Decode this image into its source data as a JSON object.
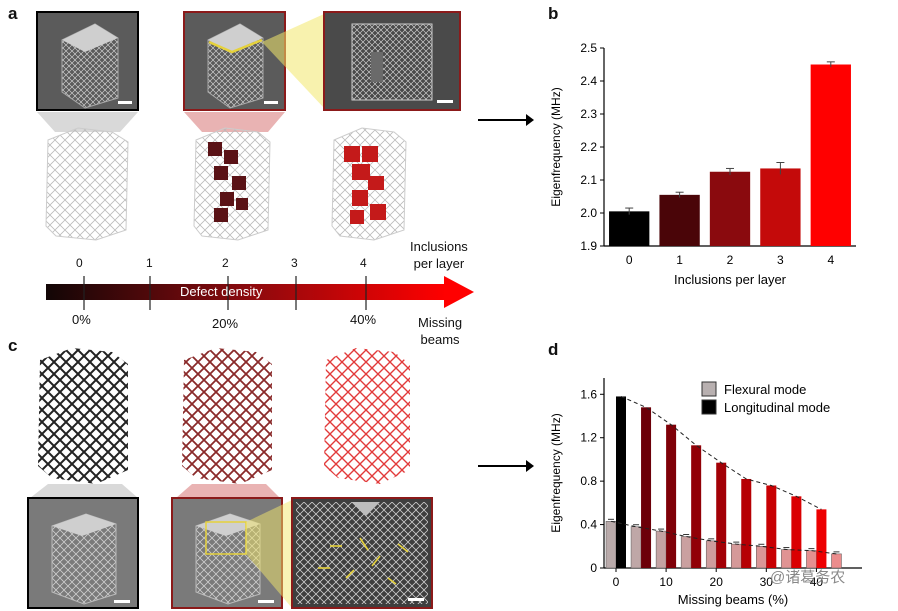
{
  "panels": {
    "a": "a",
    "b": "b",
    "c": "c",
    "d": "d"
  },
  "scale": {
    "top_numbers": [
      "0",
      "1",
      "2",
      "3",
      "4"
    ],
    "top_title": "Inclusions\nper layer",
    "bar_label": "Defect density",
    "bottom_numbers": [
      "0%",
      "20%",
      "40%"
    ],
    "bottom_title": "Missing\nbeams"
  },
  "colors": {
    "bar_start": "#000000",
    "bar_end": "#ff0000",
    "highlight": "#e6d23c"
  },
  "watermark": "@诸葛务农",
  "chart_data": [
    {
      "type": "bar",
      "categories": [
        "0",
        "1",
        "2",
        "3",
        "4"
      ],
      "values": [
        2.005,
        2.055,
        2.125,
        2.135,
        2.45
      ],
      "errors": [
        0.01,
        0.008,
        0.01,
        0.018,
        0.008
      ],
      "colors": [
        "#000000",
        "#4a0508",
        "#8a0a0e",
        "#c40a0a",
        "#ff0000"
      ],
      "xlabel": "Inclusions per layer",
      "ylabel": "Eigenfrequency (MHz)",
      "ylim": [
        1.9,
        2.5
      ],
      "yticks": [
        "1.9",
        "2.0",
        "2.1",
        "2.2",
        "2.3",
        "2.4",
        "2.5"
      ]
    },
    {
      "type": "bar",
      "categories": [
        "0",
        "5",
        "10",
        "15",
        "20",
        "25",
        "30",
        "35",
        "40",
        "45"
      ],
      "xticks": [
        "0",
        "10",
        "20",
        "30",
        "40"
      ],
      "series": [
        {
          "name": "Flexural mode",
          "values": [
            0.43,
            0.38,
            0.34,
            0.29,
            0.25,
            0.22,
            0.2,
            0.17,
            0.16,
            0.13
          ]
        },
        {
          "name": "Longitudinal mode",
          "values": [
            1.58,
            1.48,
            1.32,
            1.13,
            0.97,
            0.82,
            0.76,
            0.66,
            0.54,
            0
          ]
        }
      ],
      "xlabel": "Missing beams (%)",
      "ylabel": "Eigenfrequency (MHz)",
      "ylim": [
        0,
        1.75
      ],
      "yticks": [
        "0",
        "0.4",
        "0.8",
        "1.2",
        "1.6"
      ],
      "legend_position": "top-right"
    }
  ]
}
